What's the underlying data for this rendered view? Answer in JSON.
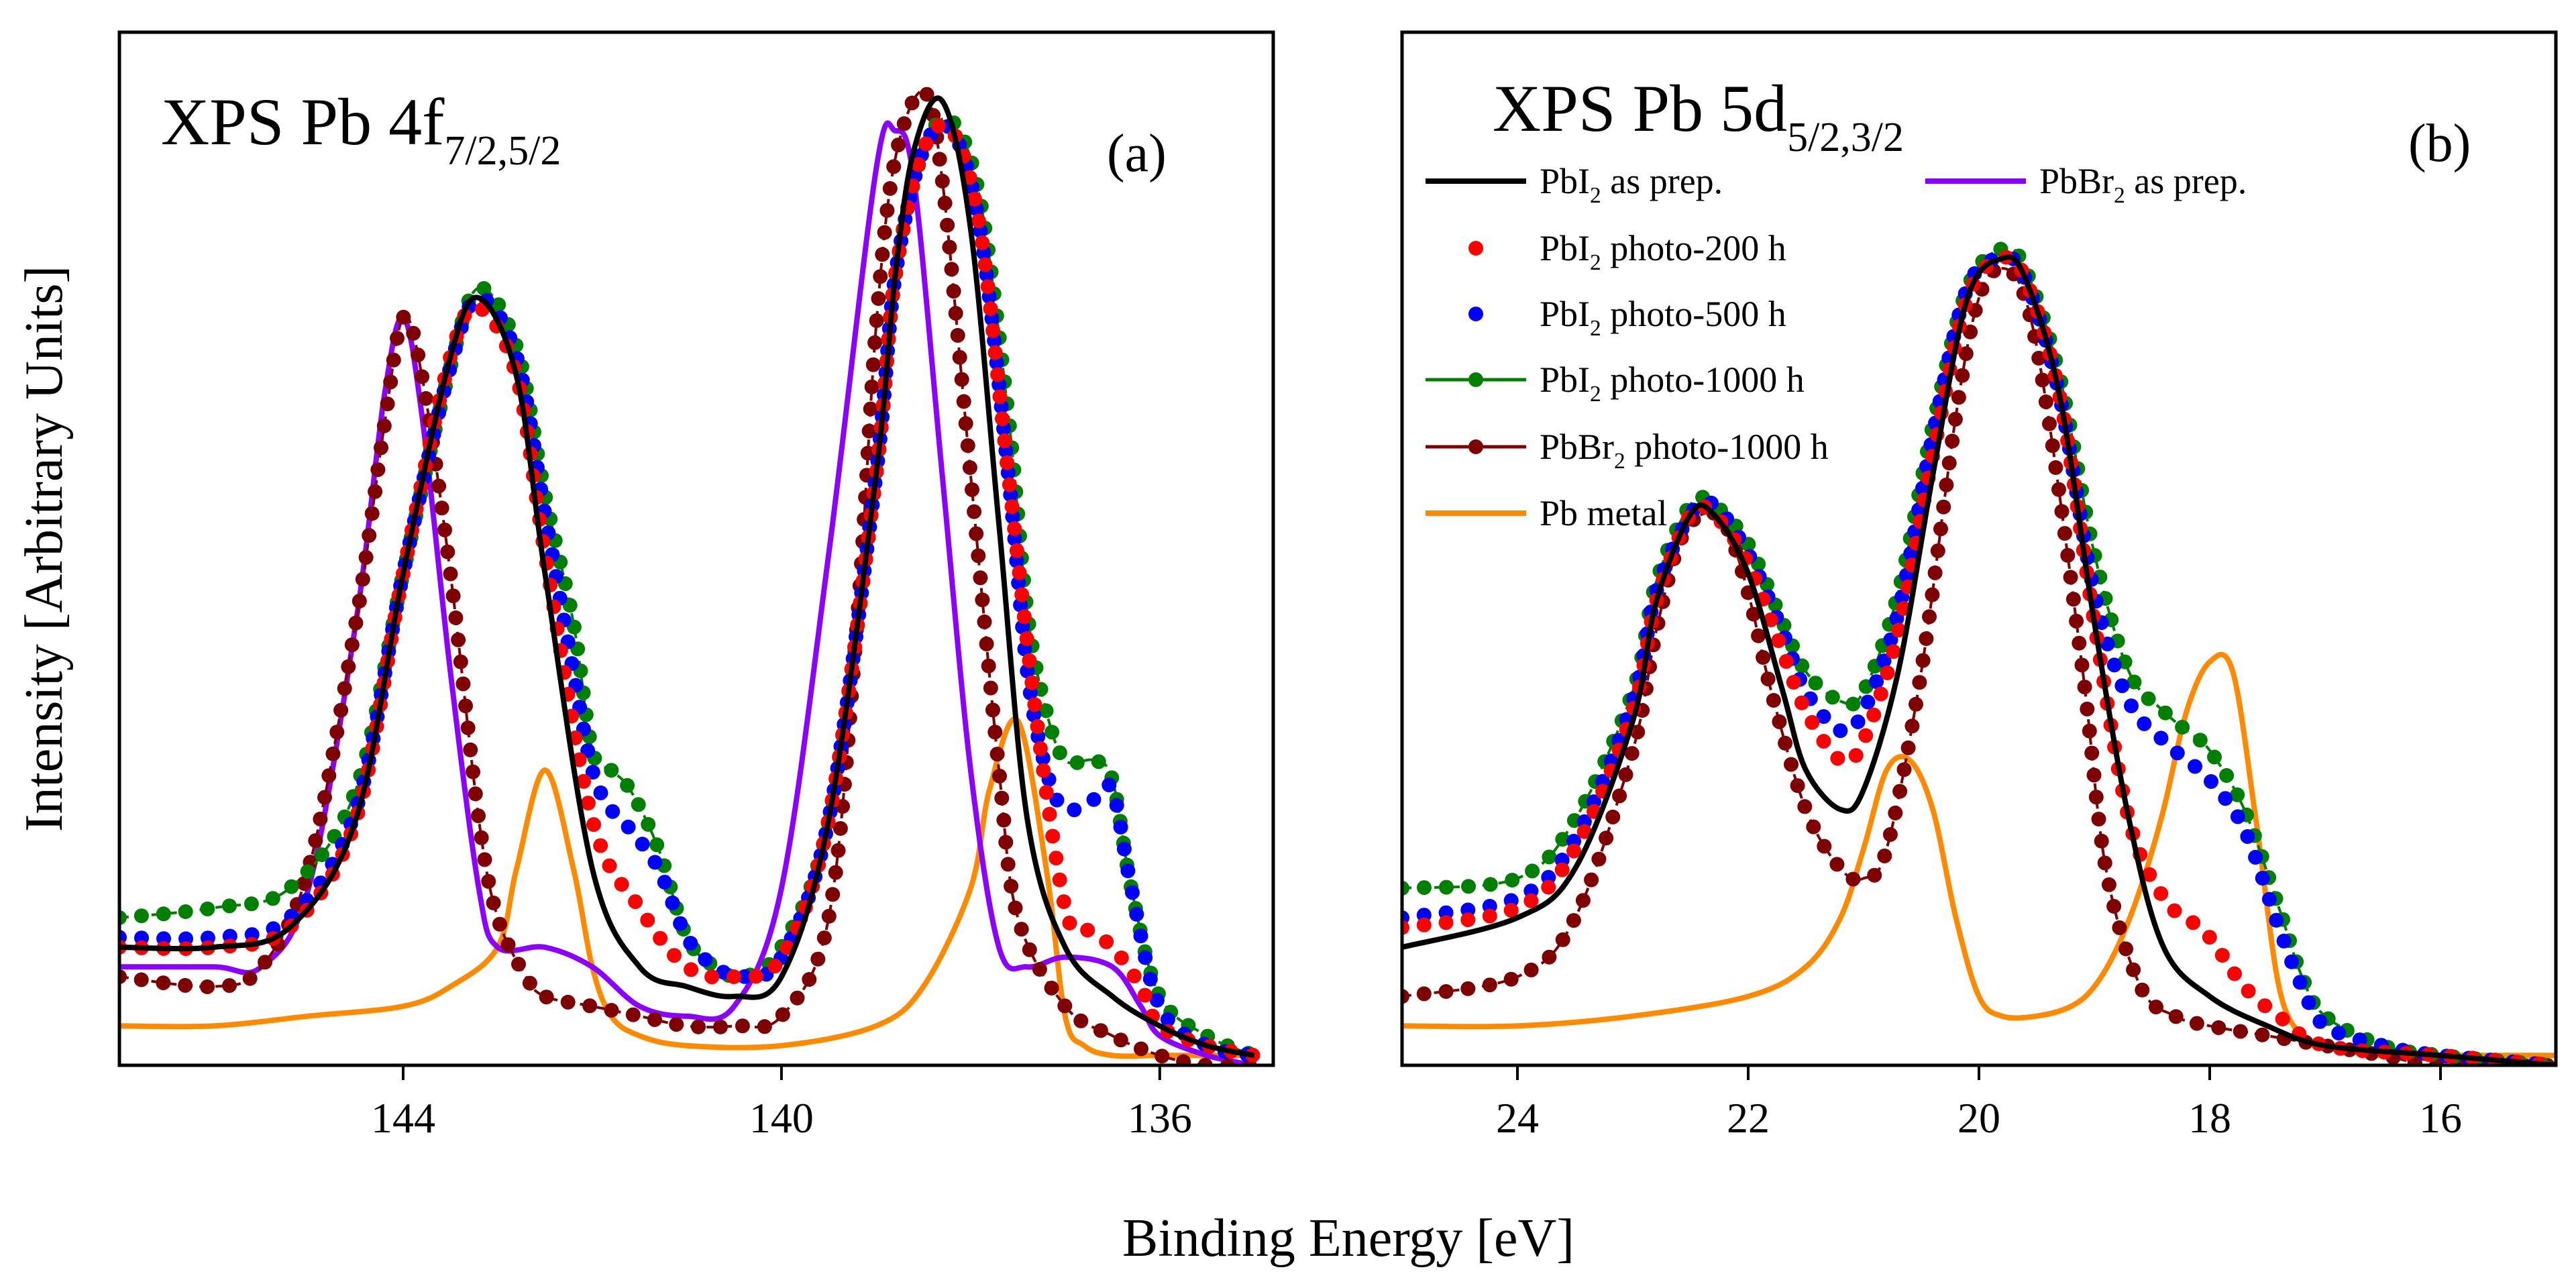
{
  "figure": {
    "ylabel": "Intensity [Arbitrary Units]",
    "xlabel": "Binding Energy [eV]"
  },
  "legend": [
    {
      "id": "pbi2_prep",
      "label_main": "PbI",
      "label_sub": "2",
      "label_rest": " as prep.",
      "color": "#000000",
      "style": "line"
    },
    {
      "id": "pbi2_200",
      "label_main": "PbI",
      "label_sub": "2",
      "label_rest": " photo-200 h",
      "color": "#ff0000",
      "style": "dots"
    },
    {
      "id": "pbi2_500",
      "label_main": "PbI",
      "label_sub": "2",
      "label_rest": " photo-500 h",
      "color": "#0000ff",
      "style": "dots"
    },
    {
      "id": "pbi2_1000",
      "label_main": "PbI",
      "label_sub": "2",
      "label_rest": " photo-1000 h",
      "color": "#008000",
      "style": "line-dots"
    },
    {
      "id": "pbbr2_1000",
      "label_main": "PbBr",
      "label_sub": "2",
      "label_rest": " photo-1000 h",
      "color": "#7f0000",
      "style": "line-dots"
    },
    {
      "id": "pb_metal",
      "label_main": "Pb metal",
      "label_sub": "",
      "label_rest": "",
      "color": "#ff8a00",
      "style": "line"
    },
    {
      "id": "pbbr2_prep",
      "label_main": "PbBr",
      "label_sub": "2",
      "label_rest": " as prep.",
      "color": "#8b00ff",
      "style": "line"
    }
  ],
  "chart_data": [
    {
      "type": "line",
      "panel_letter": "(a)",
      "title_main": "XPS Pb 4f",
      "title_sub": "7/2,5/2",
      "xlabel": "Binding Energy [eV]",
      "ylabel": "Intensity [Arbitrary Units]",
      "xlim": [
        147,
        134.8
      ],
      "ylim": [
        0,
        1.05
      ],
      "x_reversed": true,
      "xticks": [
        144,
        140,
        136
      ],
      "xtick_labels": [
        "144",
        "140",
        "136"
      ],
      "grid": false,
      "series": [
        {
          "id": "pbi2_prep",
          "color": "#000000",
          "style": "line",
          "x": [
            147,
            146,
            145.2,
            144.5,
            144,
            143.5,
            143.2,
            142.8,
            142.5,
            142,
            141.5,
            141,
            140.5,
            140,
            139.5,
            139,
            138.8,
            138.6,
            138.3,
            138,
            137.7,
            137.4,
            137,
            136.5,
            136,
            135.5,
            135
          ],
          "y": [
            0.12,
            0.12,
            0.14,
            0.25,
            0.5,
            0.72,
            0.78,
            0.7,
            0.5,
            0.2,
            0.1,
            0.08,
            0.07,
            0.09,
            0.25,
            0.6,
            0.8,
            0.93,
            0.98,
            0.85,
            0.55,
            0.25,
            0.12,
            0.07,
            0.04,
            0.02,
            0.01
          ]
        },
        {
          "id": "pbi2_200",
          "color": "#ff0000",
          "style": "dots",
          "x": [
            147,
            146,
            145.2,
            144.5,
            144,
            143.5,
            143.2,
            142.8,
            142.5,
            142,
            141.5,
            141,
            140.5,
            140,
            139.5,
            139,
            138.8,
            138.5,
            138.2,
            137.9,
            137.6,
            137.3,
            137,
            136.8,
            136.5,
            136.2,
            136,
            135.5,
            135
          ],
          "y": [
            0.12,
            0.12,
            0.14,
            0.25,
            0.5,
            0.72,
            0.77,
            0.7,
            0.52,
            0.25,
            0.16,
            0.1,
            0.09,
            0.11,
            0.25,
            0.6,
            0.8,
            0.93,
            0.95,
            0.85,
            0.6,
            0.35,
            0.16,
            0.14,
            0.12,
            0.08,
            0.04,
            0.02,
            0.01
          ]
        },
        {
          "id": "pbi2_500",
          "color": "#0000ff",
          "style": "dots",
          "x": [
            147,
            146,
            145.2,
            144.5,
            144,
            143.5,
            143.2,
            142.8,
            142.5,
            142.2,
            142,
            141.8,
            141.6,
            141.3,
            141,
            140.7,
            140.4,
            140,
            139.5,
            139,
            138.8,
            138.5,
            138.2,
            137.9,
            137.6,
            137.4,
            137.2,
            137,
            136.7,
            136.5,
            136.3,
            136,
            135.5,
            135
          ],
          "y": [
            0.13,
            0.13,
            0.15,
            0.26,
            0.5,
            0.71,
            0.78,
            0.72,
            0.56,
            0.4,
            0.3,
            0.26,
            0.24,
            0.2,
            0.13,
            0.1,
            0.09,
            0.11,
            0.25,
            0.6,
            0.8,
            0.93,
            0.95,
            0.85,
            0.6,
            0.4,
            0.3,
            0.26,
            0.27,
            0.28,
            0.18,
            0.06,
            0.02,
            0.01
          ]
        },
        {
          "id": "pbi2_1000",
          "color": "#008000",
          "style": "line-dots",
          "x": [
            147,
            146,
            145.2,
            144.5,
            144,
            143.5,
            143.2,
            142.8,
            142.5,
            142.2,
            142,
            141.8,
            141.6,
            141.3,
            141,
            140.7,
            140.4,
            140,
            139.5,
            139,
            138.8,
            138.5,
            138.2,
            137.9,
            137.6,
            137.4,
            137.2,
            137,
            136.7,
            136.5,
            136.3,
            136,
            135.5,
            135
          ],
          "y": [
            0.15,
            0.16,
            0.18,
            0.28,
            0.5,
            0.71,
            0.79,
            0.73,
            0.58,
            0.45,
            0.32,
            0.3,
            0.28,
            0.22,
            0.13,
            0.1,
            0.09,
            0.12,
            0.25,
            0.6,
            0.8,
            0.93,
            0.96,
            0.88,
            0.66,
            0.46,
            0.36,
            0.31,
            0.31,
            0.29,
            0.18,
            0.07,
            0.03,
            0.01
          ]
        },
        {
          "id": "pbbr2_1000",
          "color": "#7f0000",
          "style": "line-dots",
          "x": [
            147,
            146,
            145.5,
            145,
            144.5,
            144.2,
            144,
            143.8,
            143.5,
            143.2,
            143,
            142.7,
            142.5,
            142,
            141.5,
            141,
            140.5,
            140,
            139.5,
            139.2,
            139,
            138.8,
            138.5,
            138.3,
            138,
            137.7,
            137.5,
            137,
            136.5,
            136,
            135.5,
            135
          ],
          "y": [
            0.09,
            0.08,
            0.1,
            0.2,
            0.45,
            0.65,
            0.76,
            0.7,
            0.5,
            0.25,
            0.15,
            0.09,
            0.07,
            0.06,
            0.05,
            0.04,
            0.04,
            0.05,
            0.15,
            0.45,
            0.75,
            0.92,
            0.99,
            0.9,
            0.6,
            0.3,
            0.15,
            0.06,
            0.03,
            0.01,
            0.0,
            0.0
          ]
        },
        {
          "id": "pbbr2_prep",
          "color": "#8b00ff",
          "style": "line",
          "x": [
            147,
            146,
            145.5,
            145,
            144.5,
            144.2,
            144,
            143.8,
            143.5,
            143.2,
            143,
            142.5,
            142,
            141.5,
            141,
            140.5,
            140,
            139.5,
            139,
            138.8,
            138.6,
            138.3,
            138,
            137.7,
            137.4,
            137,
            136.5,
            136.2,
            136,
            135.5,
            135
          ],
          "y": [
            0.1,
            0.1,
            0.1,
            0.18,
            0.45,
            0.68,
            0.76,
            0.66,
            0.4,
            0.18,
            0.12,
            0.12,
            0.1,
            0.06,
            0.05,
            0.06,
            0.18,
            0.52,
            0.91,
            0.95,
            0.9,
            0.6,
            0.3,
            0.12,
            0.1,
            0.11,
            0.1,
            0.06,
            0.03,
            0.01,
            0.0
          ]
        },
        {
          "id": "pb_metal",
          "color": "#ff8a00",
          "style": "line",
          "x": [
            147,
            146,
            145,
            144,
            143.5,
            143,
            142.8,
            142.5,
            142.2,
            142,
            141.8,
            141.5,
            141,
            140,
            139,
            138.5,
            138,
            137.8,
            137.5,
            137.2,
            137,
            136.8,
            136.5,
            136,
            135.5,
            135
          ],
          "y": [
            0.04,
            0.04,
            0.05,
            0.06,
            0.08,
            0.12,
            0.2,
            0.3,
            0.2,
            0.1,
            0.05,
            0.03,
            0.02,
            0.02,
            0.04,
            0.08,
            0.18,
            0.28,
            0.35,
            0.2,
            0.05,
            0.02,
            0.01,
            0.01,
            0.01,
            0.01
          ]
        }
      ]
    },
    {
      "type": "line",
      "panel_letter": "(b)",
      "title_main": "XPS Pb 5d",
      "title_sub": "5/2,3/2",
      "xlabel": "Binding Energy [eV]",
      "ylabel": "Intensity [Arbitrary Units]",
      "xlim": [
        25,
        15
      ],
      "ylim": [
        0,
        1.05
      ],
      "x_reversed": true,
      "xticks": [
        24,
        22,
        20,
        18,
        16
      ],
      "xtick_labels": [
        "24",
        "22",
        "20",
        "18",
        "16"
      ],
      "grid": false,
      "series": [
        {
          "id": "pbi2_prep",
          "color": "#000000",
          "style": "line",
          "x": [
            25,
            24,
            23.5,
            23,
            22.8,
            22.5,
            22.3,
            22,
            21.7,
            21.5,
            21.2,
            21,
            20.7,
            20.4,
            20.1,
            19.8,
            19.6,
            19.3,
            19,
            18.7,
            18.4,
            18,
            17.5,
            17,
            16,
            15
          ],
          "y": [
            0.12,
            0.15,
            0.2,
            0.35,
            0.47,
            0.56,
            0.56,
            0.5,
            0.38,
            0.3,
            0.26,
            0.28,
            0.4,
            0.6,
            0.78,
            0.82,
            0.8,
            0.68,
            0.45,
            0.25,
            0.12,
            0.07,
            0.04,
            0.02,
            0.01,
            0.0
          ]
        },
        {
          "id": "pbi2_200",
          "color": "#ff0000",
          "style": "dots",
          "x": [
            25,
            24,
            23.5,
            23,
            22.8,
            22.5,
            22.3,
            22,
            21.7,
            21.5,
            21.2,
            21,
            20.7,
            20.4,
            20.1,
            19.8,
            19.6,
            19.3,
            19,
            18.7,
            18.4,
            18.2,
            18,
            17.7,
            17.4,
            17,
            16,
            15
          ],
          "y": [
            0.14,
            0.16,
            0.22,
            0.36,
            0.47,
            0.56,
            0.56,
            0.51,
            0.42,
            0.36,
            0.31,
            0.33,
            0.44,
            0.62,
            0.78,
            0.82,
            0.8,
            0.68,
            0.45,
            0.25,
            0.17,
            0.15,
            0.13,
            0.08,
            0.05,
            0.02,
            0.01,
            0.0
          ]
        },
        {
          "id": "pbi2_500",
          "color": "#0000ff",
          "style": "dots",
          "x": [
            25,
            24,
            23.5,
            23,
            22.8,
            22.5,
            22.3,
            22,
            21.7,
            21.5,
            21.2,
            21,
            20.7,
            20.4,
            20.1,
            19.8,
            19.6,
            19.3,
            19,
            18.7,
            18.4,
            18.2,
            18,
            17.7,
            17.4,
            17.2,
            17,
            16.5,
            16,
            15
          ],
          "y": [
            0.15,
            0.17,
            0.23,
            0.37,
            0.48,
            0.56,
            0.57,
            0.52,
            0.44,
            0.38,
            0.34,
            0.36,
            0.46,
            0.64,
            0.79,
            0.82,
            0.8,
            0.68,
            0.48,
            0.37,
            0.33,
            0.31,
            0.29,
            0.24,
            0.14,
            0.08,
            0.04,
            0.02,
            0.01,
            0.0
          ]
        },
        {
          "id": "pbi2_1000",
          "color": "#008000",
          "style": "line-dots",
          "x": [
            25,
            24,
            23.5,
            23,
            22.8,
            22.5,
            22.3,
            22,
            21.7,
            21.5,
            21.2,
            21,
            20.7,
            20.4,
            20.1,
            19.8,
            19.6,
            19.3,
            19,
            18.7,
            18.4,
            18.2,
            18,
            17.7,
            17.4,
            17.2,
            17,
            16.5,
            16,
            15
          ],
          "y": [
            0.18,
            0.19,
            0.25,
            0.38,
            0.49,
            0.57,
            0.57,
            0.53,
            0.45,
            0.4,
            0.37,
            0.38,
            0.48,
            0.65,
            0.79,
            0.83,
            0.81,
            0.7,
            0.52,
            0.4,
            0.36,
            0.34,
            0.32,
            0.26,
            0.16,
            0.09,
            0.05,
            0.02,
            0.01,
            0.0
          ]
        },
        {
          "id": "pbbr2_1000",
          "color": "#7f0000",
          "style": "line-dots",
          "x": [
            25,
            24,
            23.5,
            23,
            22.8,
            22.6,
            22.4,
            22.2,
            22,
            21.8,
            21.5,
            21.2,
            21,
            20.8,
            20.5,
            20.2,
            20,
            19.8,
            19.6,
            19.4,
            19.1,
            18.9,
            18.6,
            18.3,
            18,
            17.5,
            17,
            16.5,
            16,
            15
          ],
          "y": [
            0.07,
            0.09,
            0.15,
            0.32,
            0.44,
            0.53,
            0.56,
            0.55,
            0.48,
            0.38,
            0.26,
            0.2,
            0.19,
            0.22,
            0.4,
            0.66,
            0.78,
            0.81,
            0.78,
            0.66,
            0.4,
            0.2,
            0.08,
            0.05,
            0.04,
            0.03,
            0.02,
            0.01,
            0.0,
            0.0
          ]
        },
        {
          "id": "pb_metal",
          "color": "#ff8a00",
          "style": "line",
          "x": [
            25,
            24,
            23,
            22,
            21.5,
            21.2,
            21,
            20.8,
            20.6,
            20.4,
            20.2,
            20,
            19.8,
            19.5,
            19.2,
            19,
            18.8,
            18.6,
            18.4,
            18.2,
            18,
            17.8,
            17.6,
            17.4,
            17.2,
            17,
            16.5,
            16,
            15
          ],
          "y": [
            0.04,
            0.04,
            0.05,
            0.07,
            0.1,
            0.15,
            0.22,
            0.3,
            0.31,
            0.26,
            0.15,
            0.07,
            0.05,
            0.05,
            0.06,
            0.08,
            0.12,
            0.18,
            0.26,
            0.36,
            0.41,
            0.4,
            0.25,
            0.08,
            0.03,
            0.02,
            0.01,
            0.01,
            0.01
          ]
        }
      ]
    }
  ]
}
